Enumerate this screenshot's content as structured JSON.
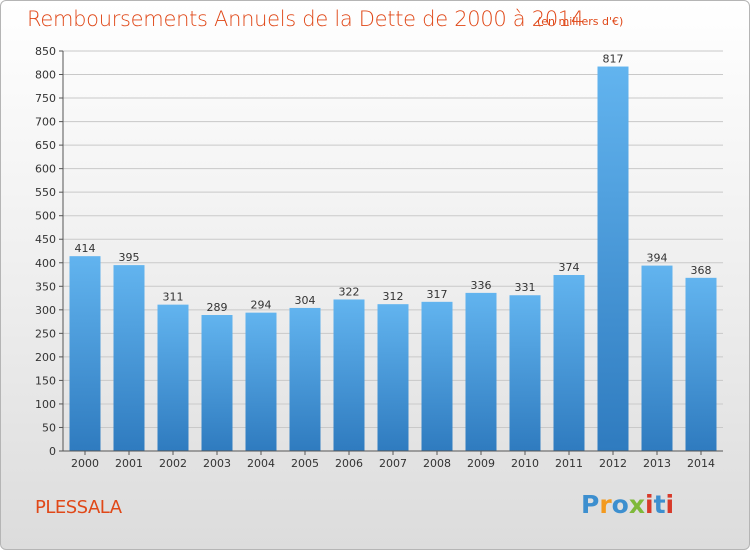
{
  "title": "Remboursements Annuels de la Dette de 2000 à 2014",
  "subtitle": "(en milliers d'€)",
  "commune": "PLESSALA",
  "logo": {
    "letters": [
      "P",
      "r",
      "o",
      "x",
      "i",
      "t",
      "i"
    ],
    "colors": [
      "#3d8fcf",
      "#f39a1f",
      "#3d8fcf",
      "#7fb93a",
      "#d83a2a",
      "#3d8fcf",
      "#d83a2a"
    ]
  },
  "colors": {
    "title": "#e04818",
    "bar_top": "#62b4ef",
    "bar_bottom": "#2f7bbf",
    "grid": "#c9c9c9",
    "axis_text": "#333333"
  },
  "chart_data": {
    "type": "bar",
    "title": "Remboursements Annuels de la Dette de 2000 à 2014",
    "xlabel": "",
    "ylabel": "",
    "ylim": [
      0,
      850
    ],
    "yticks": [
      0,
      50,
      100,
      150,
      200,
      250,
      300,
      350,
      400,
      450,
      500,
      550,
      600,
      650,
      700,
      750,
      800,
      850
    ],
    "grid": true,
    "categories": [
      "2000",
      "2001",
      "2002",
      "2003",
      "2004",
      "2005",
      "2006",
      "2007",
      "2008",
      "2009",
      "2010",
      "2011",
      "2012",
      "2013",
      "2014"
    ],
    "values": [
      414,
      395,
      311,
      289,
      294,
      304,
      322,
      312,
      317,
      336,
      331,
      374,
      817,
      394,
      368
    ]
  }
}
